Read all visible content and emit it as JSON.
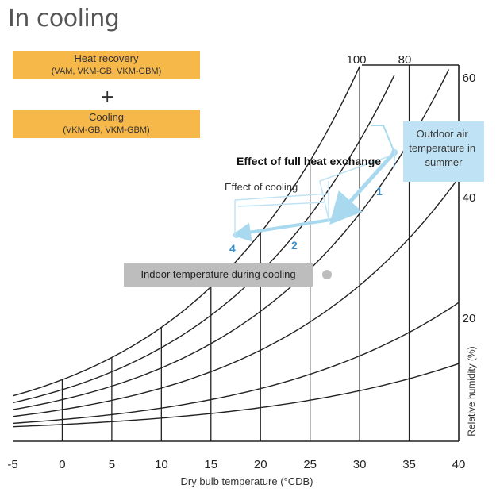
{
  "title": "In cooling",
  "legend": {
    "heat_recovery": {
      "label": "Heat recovery",
      "models": "(VAM, VKM-GB, VKM-GBM)"
    },
    "plus": "+",
    "cooling": {
      "label": "Cooling",
      "models": "(VKM-GB, VKM-GBM)"
    }
  },
  "chart_data": {
    "type": "psychrometric-chart",
    "xlabel": "Dry bulb temperature (°CDB)",
    "ylabel": "Relative humidity (%)",
    "x_ticks": [
      -5,
      0,
      5,
      10,
      15,
      20,
      25,
      30,
      35,
      40
    ],
    "x_range": [
      -5,
      40
    ],
    "rh_curves": [
      {
        "label": "100",
        "value": 100
      },
      {
        "label": "80",
        "value": 80
      },
      {
        "label": "60",
        "value": 60
      },
      {
        "label": "40",
        "value": 40
      },
      {
        "label": "20",
        "value": 20
      }
    ],
    "outdoor_label": "Outdoor air temperature in summer",
    "indoor_label": "Indoor temperature during cooling",
    "effect_full_heat_exchange": "Effect of full heat exchange",
    "effect_cooling": "Effect of cooling",
    "points": [
      {
        "label": "1",
        "kind": "path-marker"
      },
      {
        "label": "2",
        "kind": "path-marker"
      },
      {
        "label": "4",
        "kind": "end-point"
      }
    ],
    "colors": {
      "legend_fill": "#F7B84A",
      "outdoor_box": "#BFE3F5",
      "indoor_box": "#BDBDBD",
      "process_arrow": "#A9D9EF",
      "marker_text": "#3A8FC6"
    }
  }
}
